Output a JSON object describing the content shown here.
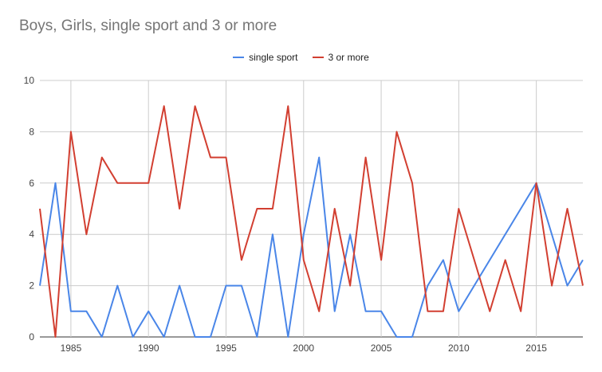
{
  "chart_data": {
    "type": "line",
    "title": "Boys, Girls, single sport and 3 or more",
    "xlabel": "",
    "ylabel": "",
    "x": [
      1983,
      1984,
      1985,
      1986,
      1987,
      1988,
      1989,
      1990,
      1991,
      1992,
      1993,
      1994,
      1995,
      1996,
      1997,
      1998,
      1999,
      2000,
      2001,
      2002,
      2003,
      2004,
      2005,
      2006,
      2007,
      2008,
      2009,
      2010,
      2011,
      2012,
      2013,
      2014,
      2015,
      2016,
      2017,
      2018
    ],
    "xlim": [
      1983,
      2018
    ],
    "ylim": [
      0,
      10
    ],
    "x_ticks": [
      1985,
      1990,
      1995,
      2000,
      2005,
      2010,
      2015
    ],
    "y_ticks": [
      0,
      2,
      4,
      6,
      8,
      10
    ],
    "x_tick_labels": [
      "1985",
      "1990",
      "1995",
      "2000",
      "2005",
      "2010",
      "2015"
    ],
    "y_tick_labels": [
      "0",
      "2",
      "4",
      "6",
      "8",
      "10"
    ],
    "grid": true,
    "legend_position": "top-center",
    "series": [
      {
        "name": "single sport",
        "color": "#4a86e8",
        "values": [
          2,
          6,
          1,
          1,
          0,
          2,
          0,
          1,
          0,
          2,
          0,
          0,
          2,
          2,
          0,
          4,
          0,
          4,
          7,
          1,
          4,
          1,
          1,
          0,
          0,
          2,
          3,
          1,
          null,
          null,
          null,
          null,
          6,
          null,
          2,
          3
        ]
      },
      {
        "name": "3 or more",
        "color": "#d23f31",
        "values": [
          5,
          0,
          8,
          4,
          7,
          6,
          6,
          6,
          9,
          5,
          9,
          7,
          7,
          3,
          5,
          5,
          9,
          3,
          1,
          5,
          2,
          7,
          3,
          8,
          6,
          1,
          1,
          5,
          null,
          1,
          3,
          1,
          6,
          2,
          5,
          2
        ]
      }
    ]
  }
}
